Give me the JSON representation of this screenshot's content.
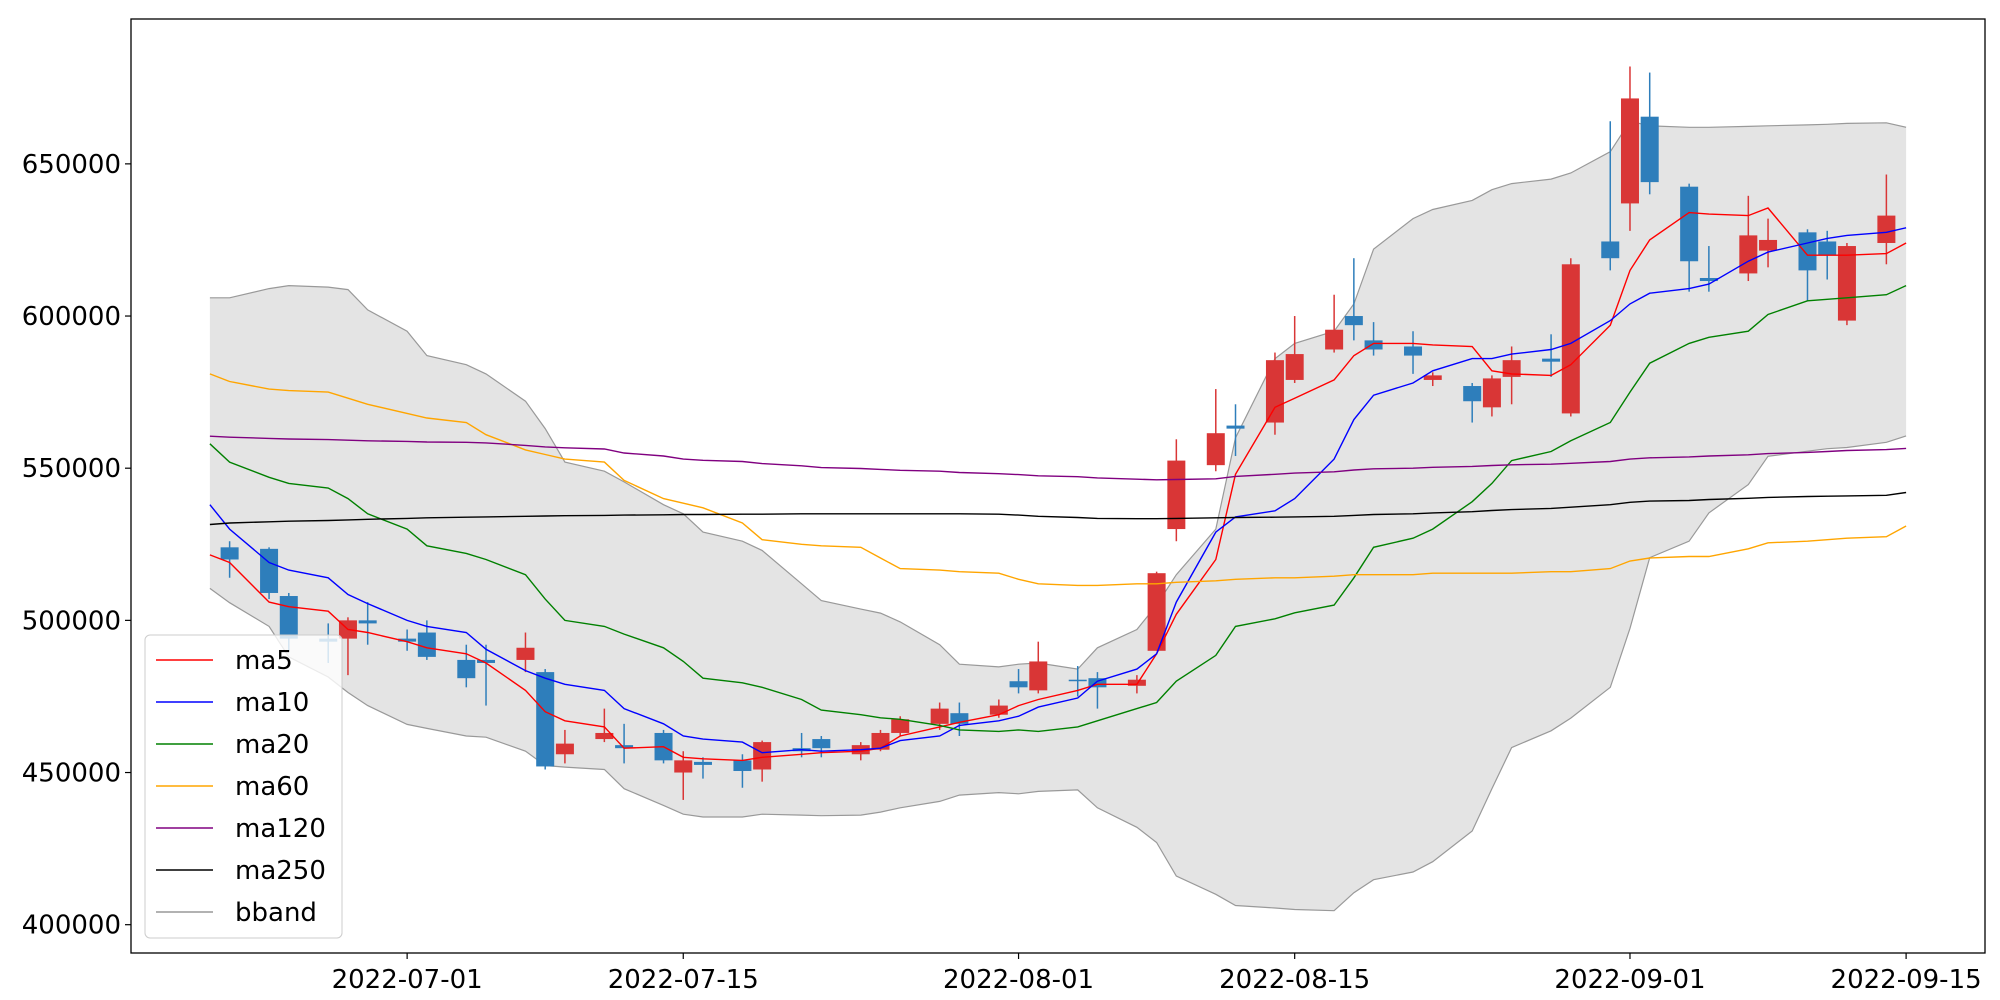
{
  "chart_data": {
    "type": "candlestick",
    "x": [
      "2022-06-21",
      "2022-06-22",
      "2022-06-24",
      "2022-06-25",
      "2022-06-27",
      "2022-06-28",
      "2022-06-29",
      "2022-07-01",
      "2022-07-02",
      "2022-07-04",
      "2022-07-05",
      "2022-07-07",
      "2022-07-08",
      "2022-07-09",
      "2022-07-11",
      "2022-07-12",
      "2022-07-14",
      "2022-07-15",
      "2022-07-16",
      "2022-07-18",
      "2022-07-19",
      "2022-07-21",
      "2022-07-22",
      "2022-07-24",
      "2022-07-25",
      "2022-07-26",
      "2022-07-28",
      "2022-07-29",
      "2022-07-31",
      "2022-08-01",
      "2022-08-02",
      "2022-08-04",
      "2022-08-05",
      "2022-08-07",
      "2022-08-08",
      "2022-08-09",
      "2022-08-11",
      "2022-08-12",
      "2022-08-14",
      "2022-08-15",
      "2022-08-17",
      "2022-08-18",
      "2022-08-19",
      "2022-08-21",
      "2022-08-22",
      "2022-08-24",
      "2022-08-25",
      "2022-08-26",
      "2022-08-28",
      "2022-08-29",
      "2022-08-31",
      "2022-09-01",
      "2022-09-02",
      "2022-09-04",
      "2022-09-05",
      "2022-09-07",
      "2022-09-08",
      "2022-09-10",
      "2022-09-11",
      "2022-09-12",
      "2022-09-14",
      "2022-09-15"
    ],
    "xlim": [
      "2022-06-17",
      "2022-09-19"
    ],
    "xticks": [
      "2022-07-01",
      "2022-07-15",
      "2022-08-01",
      "2022-08-15",
      "2022-09-01",
      "2022-09-15"
    ],
    "ylim": [
      390700,
      697600
    ],
    "yticks": [
      400000,
      450000,
      500000,
      550000,
      600000,
      650000
    ],
    "open": [
      null,
      524000,
      523500,
      508000,
      494000,
      494000,
      500000,
      494000,
      496000,
      487000,
      487000,
      487000,
      483000,
      456000,
      461000,
      459000,
      463000,
      450000,
      453500,
      454000,
      451000,
      458000,
      461000,
      456000,
      457500,
      463000,
      466000,
      469500,
      469000,
      480000,
      477000,
      480500,
      481000,
      478500,
      490000,
      530000,
      551000,
      564000,
      565000,
      579000,
      589000,
      600000,
      592000,
      590000,
      579000,
      577000,
      570000,
      580000,
      586000,
      568000,
      624500,
      637000,
      665500,
      642500,
      612500,
      614000,
      621500,
      627500,
      624500,
      598500,
      624000,
      null
    ],
    "high": [
      null,
      526000,
      524000,
      509000,
      499000,
      501000,
      506000,
      497000,
      500000,
      492000,
      492000,
      496000,
      484000,
      464000,
      471000,
      466000,
      464000,
      457000,
      455000,
      456000,
      460500,
      463000,
      462000,
      460000,
      464000,
      468500,
      473000,
      473000,
      474000,
      484000,
      493000,
      485000,
      483000,
      482000,
      516000,
      559500,
      576000,
      571000,
      588000,
      600000,
      607000,
      619000,
      598000,
      595000,
      581500,
      578000,
      580500,
      590000,
      594000,
      619000,
      664000,
      682000,
      680000,
      643500,
      623000,
      639500,
      632000,
      628500,
      628000,
      624000,
      646500,
      null
    ],
    "low": [
      null,
      514000,
      507000,
      490000,
      486000,
      482000,
      492000,
      490000,
      487000,
      478000,
      472000,
      483000,
      451000,
      453000,
      460000,
      453000,
      453000,
      441000,
      448000,
      445000,
      447000,
      455000,
      455000,
      454000,
      457000,
      462000,
      464000,
      462000,
      468000,
      476000,
      476000,
      475000,
      471000,
      476000,
      490000,
      526000,
      549000,
      554000,
      561000,
      578000,
      588000,
      592000,
      587000,
      581000,
      577000,
      565000,
      567000,
      571000,
      580000,
      567000,
      615000,
      628000,
      640000,
      608000,
      608000,
      611500,
      616000,
      605000,
      612000,
      597000,
      617000,
      null
    ],
    "close": [
      null,
      520000,
      509000,
      494000,
      493000,
      500000,
      499000,
      493000,
      488000,
      481000,
      486000,
      491000,
      452000,
      459500,
      463000,
      458000,
      454000,
      454000,
      452500,
      450500,
      460000,
      457000,
      458000,
      459000,
      463000,
      467500,
      471000,
      466000,
      472000,
      478000,
      486500,
      480000,
      478000,
      480500,
      515500,
      552500,
      561500,
      563000,
      585500,
      587500,
      595500,
      597000,
      589000,
      587000,
      580500,
      572000,
      579500,
      585500,
      585000,
      617000,
      619000,
      671500,
      644000,
      618000,
      611500,
      626500,
      625000,
      615000,
      620000,
      623000,
      633000,
      null
    ],
    "up_color": "#d93636",
    "down_color": "#2e7ebb",
    "series": [
      {
        "name": "ma5",
        "color": "red",
        "values": [
          521500,
          519000,
          506000,
          504500,
          503000,
          497000,
          496000,
          493000,
          491000,
          489000,
          486000,
          477000,
          470000,
          467000,
          465000,
          458000,
          458500,
          455000,
          454500,
          454000,
          455000,
          456000,
          456500,
          457000,
          458000,
          462000,
          465000,
          466500,
          469000,
          472000,
          474000,
          477000,
          479000,
          479000,
          489000,
          502000,
          520000,
          548000,
          570000,
          573000,
          579000,
          587000,
          591000,
          591000,
          590500,
          590000,
          582000,
          581000,
          580500,
          584000,
          597000,
          615000,
          625000,
          634000,
          633500,
          633000,
          635500,
          620000,
          620000,
          620000,
          620500,
          624000
        ]
      },
      {
        "name": "ma10",
        "color": "blue",
        "values": [
          538000,
          530000,
          519000,
          516500,
          514000,
          508500,
          505500,
          500000,
          498000,
          496000,
          490500,
          483500,
          481000,
          479000,
          477000,
          471000,
          466000,
          462000,
          461000,
          460000,
          456500,
          457500,
          457000,
          457500,
          458000,
          460500,
          462000,
          465500,
          467000,
          468500,
          471500,
          474500,
          480000,
          484000,
          489000,
          506000,
          529000,
          534000,
          536000,
          540000,
          553000,
          566000,
          574000,
          578000,
          582000,
          586000,
          586000,
          587500,
          589000,
          591000,
          598500,
          604000,
          607500,
          609000,
          610500,
          618000,
          621000,
          624000,
          625500,
          626500,
          627500,
          629000
        ]
      },
      {
        "name": "ma20",
        "color": "green",
        "values": [
          558000,
          552000,
          547000,
          545000,
          543500,
          540000,
          535000,
          530000,
          524500,
          522000,
          520000,
          515000,
          507000,
          500000,
          498000,
          495500,
          491000,
          486500,
          481000,
          479500,
          478000,
          474000,
          470500,
          469000,
          468000,
          467500,
          465500,
          464000,
          463500,
          464000,
          463500,
          465000,
          467000,
          471000,
          473000,
          480000,
          488500,
          498000,
          500500,
          502500,
          505000,
          514000,
          524000,
          527000,
          530000,
          539000,
          545000,
          552500,
          555500,
          559000,
          565000,
          575000,
          584500,
          591000,
          593000,
          595000,
          600500,
          605000,
          605500,
          606000,
          607000,
          610000
        ]
      },
      {
        "name": "ma60",
        "color": "orange",
        "values": [
          581000,
          578500,
          576000,
          575500,
          575000,
          573000,
          571000,
          568000,
          566500,
          565000,
          561000,
          556000,
          554500,
          553000,
          552000,
          546000,
          540000,
          538500,
          537000,
          532000,
          526500,
          525000,
          524500,
          524000,
          520500,
          517000,
          516500,
          516000,
          515500,
          513500,
          512000,
          511500,
          511500,
          512000,
          512000,
          512500,
          513000,
          513500,
          514000,
          514000,
          514500,
          515000,
          515000,
          515000,
          515500,
          515500,
          515500,
          515500,
          516000,
          516000,
          517000,
          519500,
          520500,
          521000,
          521000,
          523500,
          525500,
          526000,
          526500,
          527000,
          527500,
          531000
        ]
      },
      {
        "name": "ma120",
        "color": "purple",
        "values": [
          560500,
          560200,
          559800,
          559600,
          559400,
          559200,
          559000,
          558800,
          558600,
          558500,
          558300,
          557500,
          557000,
          556700,
          556300,
          555000,
          554000,
          553000,
          552600,
          552200,
          551500,
          550800,
          550200,
          549900,
          549600,
          549300,
          549000,
          548600,
          548200,
          547900,
          547500,
          547200,
          546800,
          546400,
          546200,
          546300,
          546500,
          547300,
          548000,
          548400,
          548800,
          549400,
          549800,
          550000,
          550300,
          550600,
          550900,
          551100,
          551300,
          551600,
          552200,
          553000,
          553400,
          553700,
          554000,
          554400,
          554800,
          555200,
          555500,
          555800,
          556100,
          556500
        ]
      },
      {
        "name": "ma250",
        "color": "black",
        "values": [
          531500,
          532000,
          532400,
          532600,
          532800,
          533000,
          533200,
          533500,
          533700,
          533900,
          534000,
          534200,
          534300,
          534400,
          534500,
          534600,
          534700,
          534800,
          534800,
          534900,
          534900,
          535000,
          535000,
          535000,
          535000,
          535000,
          535000,
          535000,
          534900,
          534600,
          534200,
          533800,
          533500,
          533400,
          533400,
          533500,
          533700,
          533800,
          533900,
          534000,
          534200,
          534500,
          534800,
          535000,
          535300,
          535700,
          536100,
          536400,
          536800,
          537200,
          538000,
          538800,
          539200,
          539400,
          539700,
          540100,
          540400,
          540700,
          540800,
          540900,
          541100,
          542000
        ]
      }
    ],
    "bands": [
      {
        "name": "bband",
        "color": "#999999",
        "fill": "#e4e4e4",
        "upper": [
          606000,
          606000,
          609000,
          610000,
          609500,
          608700,
          602000,
          595000,
          587000,
          584000,
          581000,
          572000,
          563000,
          552000,
          549000,
          545500,
          538000,
          535000,
          529000,
          526000,
          523000,
          512000,
          506500,
          503700,
          502400,
          499500,
          492000,
          485600,
          484700,
          485600,
          486000,
          484000,
          491000,
          497000,
          505000,
          515000,
          530000,
          560000,
          586000,
          591000,
          595000,
          604000,
          622000,
          632000,
          635000,
          638000,
          641500,
          643500,
          645000,
          647000,
          654000,
          664000,
          662500,
          662000,
          662000,
          662300,
          662500,
          662800,
          663000,
          663300,
          663500,
          662000
        ],
        "lower": [
          510500,
          505800,
          498000,
          488000,
          481400,
          476300,
          472000,
          465800,
          464500,
          462000,
          461600,
          457000,
          452300,
          451800,
          451000,
          444700,
          439200,
          436300,
          435400,
          435400,
          436300,
          436000,
          435800,
          436000,
          437000,
          438400,
          440500,
          442600,
          443400,
          443000,
          443800,
          444300,
          438400,
          432000,
          427000,
          416000,
          410000,
          406300,
          405500,
          405000,
          404600,
          410500,
          414800,
          417300,
          420700,
          430800,
          444700,
          458200,
          463700,
          467900,
          478000,
          497400,
          520600,
          526000,
          535300,
          544600,
          553900,
          555600,
          556400,
          556800,
          558500,
          560600
        ]
      }
    ],
    "legend": "lower left"
  }
}
